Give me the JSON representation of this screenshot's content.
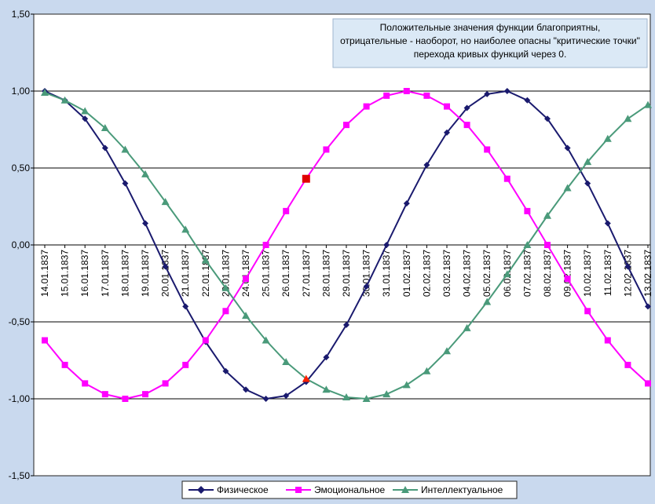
{
  "chart_data": {
    "type": "line",
    "ylim": [
      -1.5,
      1.5
    ],
    "y_ticks": [
      "1,50",
      "1,00",
      "0,50",
      "0,00",
      "-0,50",
      "-1,00",
      "-1,50"
    ],
    "y_tick_values": [
      1.5,
      1.0,
      0.5,
      0.0,
      -0.5,
      -1.0,
      -1.5
    ],
    "grid": "horizontal",
    "legend_position": "bottom",
    "categories": [
      "14.01.1837",
      "15.01.1837",
      "16.01.1837",
      "17.01.1837",
      "18.01.1837",
      "19.01.1837",
      "20.01.1837",
      "21.01.1837",
      "22.01.1837",
      "23.01.1837",
      "24.01.1837",
      "25.01.1837",
      "26.01.1837",
      "27.01.1837",
      "28.01.1837",
      "29.01.1837",
      "30.01.1837",
      "31.01.1837",
      "01.02.1837",
      "02.02.1837",
      "03.02.1837",
      "04.02.1837",
      "05.02.1837",
      "06.02.1837",
      "07.02.1837",
      "08.02.1837",
      "09.02.1837",
      "10.02.1837",
      "11.02.1837",
      "12.02.1837",
      "13.02.1837"
    ],
    "annotation": [
      "Положительные значения функции благоприятны,",
      "отрицательные - наоборот, но наиболее опасны \"критические точки\"",
      "перехода кривых функций через 0."
    ],
    "series": [
      {
        "name": "Физическое",
        "color": "#1a1a6e",
        "marker": "diamond",
        "values": [
          1.0,
          0.94,
          0.82,
          0.63,
          0.4,
          0.14,
          -0.14,
          -0.4,
          -0.63,
          -0.82,
          -0.94,
          -1.0,
          -0.98,
          -0.89,
          -0.73,
          -0.52,
          -0.27,
          0.0,
          0.27,
          0.52,
          0.73,
          0.89,
          0.98,
          1.0,
          0.94,
          0.82,
          0.63,
          0.4,
          0.14,
          -0.14,
          -0.4
        ]
      },
      {
        "name": "Эмоциональное",
        "color": "#ff00ff",
        "marker": "square",
        "values": [
          -0.62,
          -0.78,
          -0.9,
          -0.97,
          -1.0,
          -0.97,
          -0.9,
          -0.78,
          -0.62,
          -0.43,
          -0.22,
          0.0,
          0.22,
          0.43,
          0.62,
          0.78,
          0.9,
          0.97,
          1.0,
          0.97,
          0.9,
          0.78,
          0.62,
          0.43,
          0.22,
          0.0,
          -0.22,
          -0.43,
          -0.62,
          -0.78,
          -0.9
        ]
      },
      {
        "name": "Интеллектуальное",
        "color": "#4a9a7a",
        "marker": "triangle",
        "values": [
          0.99,
          0.94,
          0.87,
          0.76,
          0.62,
          0.46,
          0.28,
          0.1,
          -0.1,
          -0.28,
          -0.46,
          -0.62,
          -0.76,
          -0.87,
          -0.94,
          -0.99,
          -1.0,
          -0.97,
          -0.91,
          -0.82,
          -0.69,
          -0.54,
          -0.37,
          -0.19,
          0.0,
          0.19,
          0.37,
          0.54,
          0.69,
          0.82,
          0.91
        ]
      }
    ],
    "highlighted_points": [
      {
        "series": 1,
        "index": 13,
        "color": "#e00000"
      },
      {
        "series": 2,
        "index": 13,
        "color": "#ff2200"
      }
    ]
  }
}
